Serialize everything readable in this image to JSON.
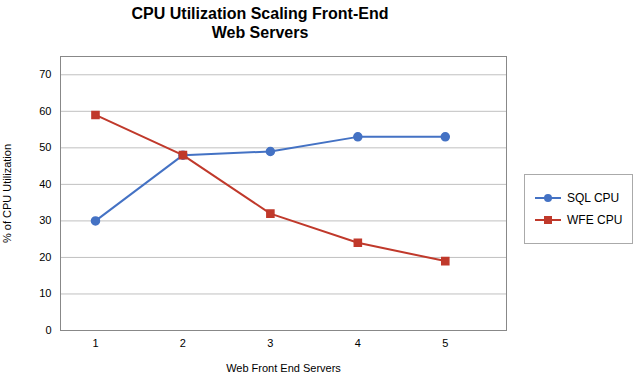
{
  "chart_data": {
    "type": "line",
    "title": "CPU Utilization Scaling Front-End\nWeb Servers",
    "xlabel": "Web Front End Servers",
    "ylabel": "% of CPU Utilization",
    "x": [
      1,
      2,
      3,
      4,
      5
    ],
    "series": [
      {
        "name": "SQL CPU",
        "color": "#4472C4",
        "marker": "circle",
        "values": [
          30,
          48,
          49,
          53,
          53
        ]
      },
      {
        "name": "WFE CPU",
        "color": "#C0392B",
        "marker": "square",
        "values": [
          59,
          48,
          32,
          24,
          19
        ]
      }
    ],
    "xlim": [
      0.6,
      5.7
    ],
    "xticks": [
      1,
      2,
      3,
      4,
      5
    ],
    "ylim": [
      0,
      75
    ],
    "yticks": [
      0,
      10,
      20,
      30,
      40,
      50,
      60,
      70
    ],
    "grid": "y",
    "legend": "right"
  }
}
